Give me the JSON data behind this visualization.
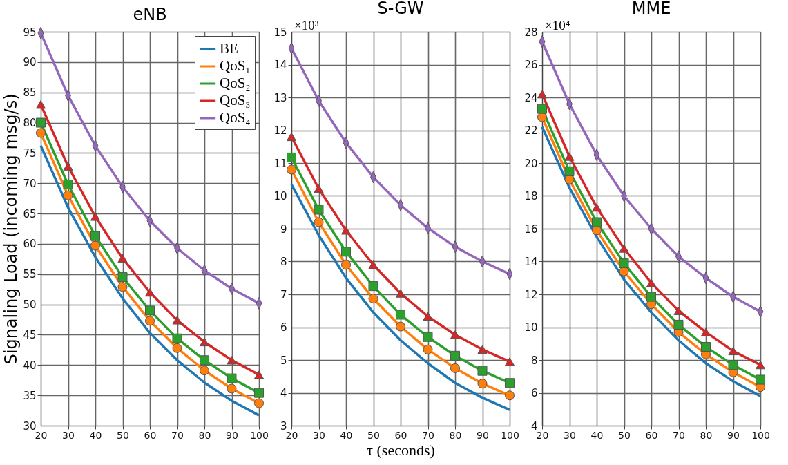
{
  "chart_data": [
    {
      "type": "line",
      "title": "eNB",
      "ylabel": "Signaling Load (incoming msg/s)",
      "x": [
        20,
        30,
        40,
        50,
        60,
        70,
        80,
        90,
        100
      ],
      "xlim": [
        20,
        100
      ],
      "xticks": [
        20,
        30,
        40,
        50,
        60,
        70,
        80,
        90,
        100
      ],
      "ylim": [
        30,
        95
      ],
      "yticks": [
        30,
        35,
        40,
        45,
        50,
        55,
        60,
        65,
        70,
        75,
        80,
        85,
        90,
        95
      ],
      "grid": true,
      "legend": "top right",
      "line_style": "solid",
      "series": [
        {
          "name": "BE",
          "color": "#1f77b4",
          "marker": "none",
          "values": [
            76.2,
            66,
            57.8,
            51,
            45.3,
            40.8,
            37.1,
            34.1,
            31.7
          ]
        },
        {
          "name": "QoS₁",
          "color": "#ff7f0e",
          "marker": "circle",
          "values": [
            78.3,
            68,
            59.7,
            52.9,
            47.3,
            42.8,
            39.1,
            36.1,
            33.7
          ]
        },
        {
          "name": "QoS₂",
          "color": "#2ca02c",
          "marker": "square",
          "values": [
            80,
            69.8,
            61.3,
            54.5,
            49,
            44.4,
            40.8,
            37.8,
            35.4
          ]
        },
        {
          "name": "QoS₃",
          "color": "#d62728",
          "marker": "triangle",
          "values": [
            83,
            72.8,
            64.5,
            57.6,
            52,
            47.4,
            43.8,
            40.8,
            38.4
          ]
        },
        {
          "name": "QoS₄",
          "color": "#9467bd",
          "marker": "diamond",
          "values": [
            94.8,
            84.5,
            76.2,
            69.4,
            63.8,
            59.3,
            55.6,
            52.6,
            50.2
          ]
        }
      ]
    },
    {
      "type": "line",
      "title": "S-GW",
      "xlabel": "τ (seconds)",
      "annotations": [
        "×10³"
      ],
      "x": [
        20,
        30,
        40,
        50,
        60,
        70,
        80,
        90,
        100
      ],
      "xlim": [
        20,
        100
      ],
      "xticks": [
        20,
        30,
        40,
        50,
        60,
        70,
        80,
        90,
        100
      ],
      "ylim": [
        3,
        15
      ],
      "yticks": [
        3,
        4,
        5,
        6,
        7,
        8,
        9,
        10,
        11,
        12,
        13,
        14,
        15
      ],
      "grid": true,
      "line_style": "solid",
      "series": [
        {
          "color": "#1f77b4",
          "marker": "none",
          "values": [
            10.35,
            8.8,
            7.5,
            6.45,
            5.6,
            4.9,
            4.3,
            3.85,
            3.48
          ]
        },
        {
          "color": "#ff7f0e",
          "marker": "circle",
          "values": [
            10.8,
            9.2,
            7.9,
            6.87,
            6.02,
            5.32,
            4.75,
            4.28,
            3.92
          ]
        },
        {
          "color": "#2ca02c",
          "marker": "square",
          "values": [
            11.17,
            9.58,
            8.3,
            7.25,
            6.38,
            5.7,
            5.13,
            4.67,
            4.3
          ]
        },
        {
          "color": "#d62728",
          "marker": "triangle",
          "values": [
            11.8,
            10.22,
            8.95,
            7.9,
            7.03,
            6.33,
            5.77,
            5.32,
            4.95
          ]
        },
        {
          "color": "#9467bd",
          "marker": "diamond",
          "values": [
            14.5,
            12.9,
            11.62,
            10.57,
            9.72,
            9.02,
            8.45,
            8.0,
            7.62
          ]
        }
      ]
    },
    {
      "type": "line",
      "title": "MME",
      "annotations": [
        "×10⁴"
      ],
      "x": [
        20,
        30,
        40,
        50,
        60,
        70,
        80,
        90,
        100
      ],
      "xlim": [
        20,
        100
      ],
      "xticks": [
        20,
        30,
        40,
        50,
        60,
        70,
        80,
        90,
        100
      ],
      "ylim": [
        4,
        28
      ],
      "yticks": [
        4,
        6,
        8,
        10,
        12,
        14,
        16,
        18,
        20,
        22,
        24,
        26,
        28
      ],
      "grid": true,
      "line_style": "solid",
      "series": [
        {
          "color": "#1f77b4",
          "marker": "none",
          "values": [
            22.2,
            18.5,
            15.5,
            12.9,
            10.9,
            9.2,
            7.8,
            6.7,
            5.8
          ]
        },
        {
          "color": "#ff7f0e",
          "marker": "circle",
          "values": [
            22.8,
            19.0,
            15.9,
            13.4,
            11.4,
            9.7,
            8.35,
            7.25,
            6.35
          ]
        },
        {
          "color": "#2ca02c",
          "marker": "square",
          "values": [
            23.3,
            19.5,
            16.4,
            13.9,
            11.85,
            10.15,
            8.8,
            7.7,
            6.8
          ]
        },
        {
          "color": "#d62728",
          "marker": "triangle",
          "values": [
            24.2,
            20.4,
            17.3,
            14.8,
            12.7,
            11.0,
            9.7,
            8.55,
            7.7
          ]
        },
        {
          "color": "#9467bd",
          "marker": "diamond",
          "values": [
            27.4,
            23.6,
            20.5,
            18.0,
            16.0,
            14.3,
            13.0,
            11.85,
            10.95
          ]
        }
      ]
    }
  ]
}
